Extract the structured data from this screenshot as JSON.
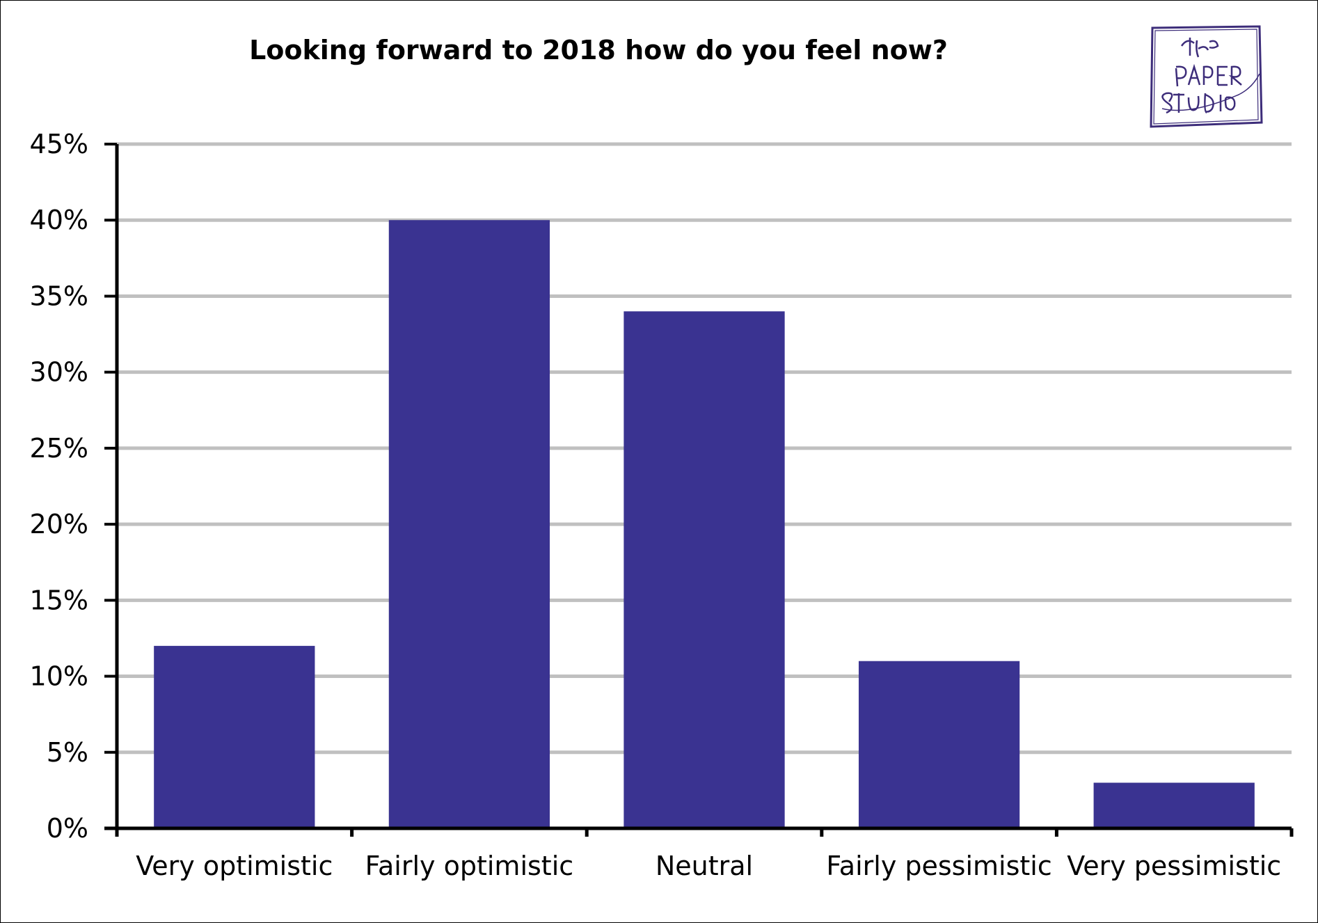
{
  "chart_data": {
    "type": "bar",
    "title": "Looking  forward to 2018 how do you feel now?",
    "categories": [
      "Very optimistic",
      "Fairly optimistic",
      "Neutral",
      "Fairly pessimistic",
      "Very pessimistic"
    ],
    "values": [
      12,
      40,
      34,
      11,
      3
    ],
    "ylim": [
      0,
      45
    ],
    "yticks": [
      "0%",
      "5%",
      "10%",
      "15%",
      "20%",
      "25%",
      "30%",
      "35%",
      "40%",
      "45%"
    ],
    "grid": true,
    "legend": "none",
    "colors": {
      "bar": "#3a3391",
      "grid": "#c0c0c0",
      "axis": "#000000"
    }
  },
  "logo": {
    "text": "The Paper Studio",
    "color": "#3d2d7a"
  }
}
